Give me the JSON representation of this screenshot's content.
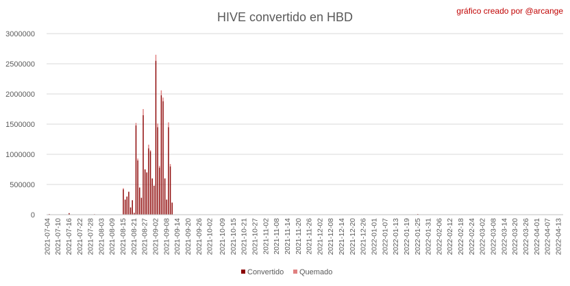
{
  "colors": {
    "convertido": "#8b0000",
    "quemado": "#e08080",
    "credit": "#c00000",
    "grid": "#d9d9d9",
    "text": "#595959"
  },
  "chart_data": {
    "type": "bar",
    "stacked": true,
    "title": "HIVE convertido en HBD",
    "credit": "gráfico creado por @arcange",
    "xlabel": "",
    "ylabel": "",
    "ylim": [
      0,
      3000000
    ],
    "yticks": [
      "0",
      "500000",
      "1000000",
      "1500000",
      "2000000",
      "2500000",
      "3000000"
    ],
    "grid": true,
    "legend_position": "bottom",
    "x_start": "2021-07-04",
    "x_end": "2022-04-15",
    "xticks": [
      "2021-07-04",
      "2021-07-10",
      "2021-07-16",
      "2021-07-22",
      "2021-07-28",
      "2021-08-03",
      "2021-08-09",
      "2021-08-15",
      "2021-08-21",
      "2021-08-27",
      "2021-09-02",
      "2021-09-08",
      "2021-09-14",
      "2021-09-20",
      "2021-09-26",
      "2021-10-02",
      "2021-10-09",
      "2021-10-15",
      "2021-10-21",
      "2021-10-27",
      "2021-11-02",
      "2021-11-08",
      "2021-11-14",
      "2021-11-20",
      "2021-11-26",
      "2021-12-02",
      "2021-12-08",
      "2021-12-14",
      "2021-12-20",
      "2021-12-26",
      "2022-01-01",
      "2022-01-07",
      "2022-01-13",
      "2022-01-19",
      "2022-01-25",
      "2022-01-31",
      "2022-02-06",
      "2022-02-12",
      "2022-02-18",
      "2022-02-24",
      "2022-03-02",
      "2022-03-08",
      "2022-03-14",
      "2022-03-20",
      "2022-03-26",
      "2022-04-01",
      "2022-04-07",
      "2022-04-13"
    ],
    "series": [
      {
        "name": "Convertido",
        "points": [
          [
            "2021-07-05",
            10000
          ],
          [
            "2021-07-16",
            25000
          ],
          [
            "2021-07-30",
            8000
          ],
          [
            "2021-08-15",
            420000
          ],
          [
            "2021-08-16",
            250000
          ],
          [
            "2021-08-17",
            300000
          ],
          [
            "2021-08-18",
            380000
          ],
          [
            "2021-08-19",
            120000
          ],
          [
            "2021-08-20",
            240000
          ],
          [
            "2021-08-21",
            30000
          ],
          [
            "2021-08-22",
            1480000
          ],
          [
            "2021-08-23",
            900000
          ],
          [
            "2021-08-24",
            450000
          ],
          [
            "2021-08-25",
            280000
          ],
          [
            "2021-08-26",
            1650000
          ],
          [
            "2021-08-27",
            750000
          ],
          [
            "2021-08-28",
            700000
          ],
          [
            "2021-08-29",
            1100000
          ],
          [
            "2021-08-30",
            1050000
          ],
          [
            "2021-08-31",
            600000
          ],
          [
            "2021-09-01",
            480000
          ],
          [
            "2021-09-02",
            2550000
          ],
          [
            "2021-09-03",
            1450000
          ],
          [
            "2021-09-04",
            780000
          ],
          [
            "2021-09-05",
            1980000
          ],
          [
            "2021-09-06",
            1880000
          ],
          [
            "2021-09-07",
            600000
          ],
          [
            "2021-09-08",
            250000
          ],
          [
            "2021-09-09",
            1450000
          ],
          [
            "2021-09-10",
            800000
          ],
          [
            "2021-09-11",
            200000
          ],
          [
            "2022-01-25",
            10000
          ]
        ]
      },
      {
        "name": "Quemado",
        "points": [
          [
            "2021-08-15",
            20000
          ],
          [
            "2021-08-22",
            40000
          ],
          [
            "2021-08-23",
            30000
          ],
          [
            "2021-08-26",
            100000
          ],
          [
            "2021-08-29",
            60000
          ],
          [
            "2021-08-30",
            20000
          ],
          [
            "2021-09-02",
            100000
          ],
          [
            "2021-09-03",
            60000
          ],
          [
            "2021-09-04",
            30000
          ],
          [
            "2021-09-05",
            80000
          ],
          [
            "2021-09-06",
            60000
          ],
          [
            "2021-09-09",
            80000
          ],
          [
            "2021-09-10",
            40000
          ]
        ]
      }
    ]
  }
}
